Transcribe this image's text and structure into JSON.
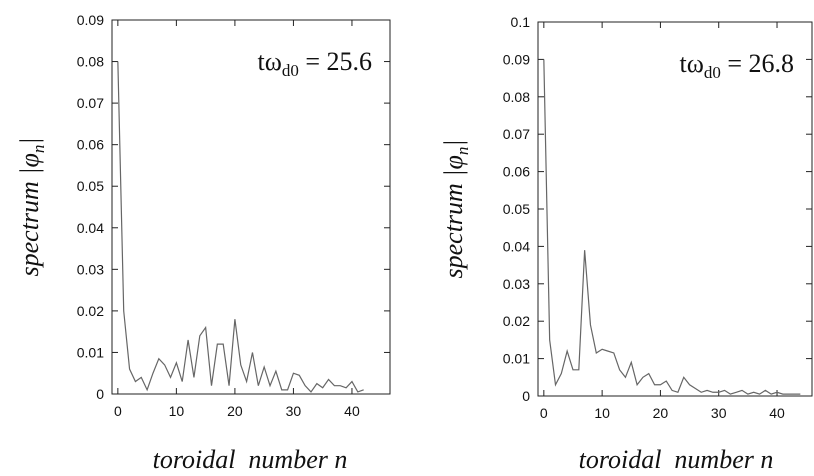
{
  "chart_data": [
    {
      "type": "line",
      "color": "#666666",
      "annotation": [
        "tω",
        "d0",
        " = 25.6"
      ],
      "ylabel": [
        "spectrum |φ",
        "n",
        "|"
      ],
      "xlabel": "toroidal  number n",
      "x": [
        0,
        1,
        2,
        3,
        4,
        5,
        6,
        7,
        8,
        9,
        10,
        11,
        12,
        13,
        14,
        15,
        16,
        17,
        18,
        19,
        20,
        21,
        22,
        23,
        24,
        25,
        26,
        27,
        28,
        29,
        30,
        31,
        32,
        33,
        34,
        35,
        36,
        37,
        38,
        39,
        40,
        41,
        42
      ],
      "values": [
        0.08,
        0.02,
        0.006,
        0.003,
        0.004,
        0.001,
        0.005,
        0.0085,
        0.007,
        0.004,
        0.0075,
        0.003,
        0.013,
        0.004,
        0.014,
        0.016,
        0.002,
        0.012,
        0.012,
        0.002,
        0.018,
        0.007,
        0.003,
        0.01,
        0.002,
        0.0065,
        0.002,
        0.0055,
        0.001,
        0.001,
        0.005,
        0.0045,
        0.002,
        0.0005,
        0.0025,
        0.0015,
        0.0035,
        0.002,
        0.002,
        0.0015,
        0.003,
        0.0005,
        0.001
      ],
      "xlim": [
        -1,
        46.5
      ],
      "ylim": [
        0,
        0.09
      ],
      "xticks": [
        0,
        10,
        20,
        30,
        40
      ],
      "yticks": [
        0,
        0.01,
        0.02,
        0.03,
        0.04,
        0.05,
        0.06,
        0.07,
        0.08,
        0.09
      ]
    },
    {
      "type": "line",
      "color": "#666666",
      "annotation": [
        "tω",
        "d0",
        " = 26.8"
      ],
      "ylabel": [
        "spectrum |φ",
        "n",
        "|"
      ],
      "xlabel": "toroidal  number n",
      "x": [
        0,
        1,
        2,
        3,
        4,
        5,
        6,
        7,
        8,
        9,
        10,
        11,
        12,
        13,
        14,
        15,
        16,
        17,
        18,
        19,
        20,
        21,
        22,
        23,
        24,
        25,
        26,
        27,
        28,
        29,
        30,
        31,
        32,
        33,
        34,
        35,
        36,
        37,
        38,
        39,
        40,
        41,
        42,
        43,
        44
      ],
      "values": [
        0.09,
        0.015,
        0.003,
        0.006,
        0.012,
        0.007,
        0.007,
        0.039,
        0.019,
        0.0115,
        0.0125,
        0.012,
        0.0115,
        0.007,
        0.005,
        0.009,
        0.003,
        0.005,
        0.006,
        0.003,
        0.003,
        0.004,
        0.0015,
        0.001,
        0.005,
        0.003,
        0.002,
        0.001,
        0.0015,
        0.001,
        0.001,
        0.0015,
        0.0005,
        0.001,
        0.0015,
        0.0005,
        0.001,
        0.0005,
        0.0015,
        0.0005,
        0.001,
        0.0005,
        0.0005,
        0.0005,
        0.0005
      ],
      "xlim": [
        -1,
        46
      ],
      "ylim": [
        0,
        0.1
      ],
      "xticks": [
        0,
        10,
        20,
        30,
        40
      ],
      "yticks": [
        0,
        0.01,
        0.02,
        0.03,
        0.04,
        0.05,
        0.06,
        0.07,
        0.08,
        0.09,
        0.1
      ]
    }
  ]
}
